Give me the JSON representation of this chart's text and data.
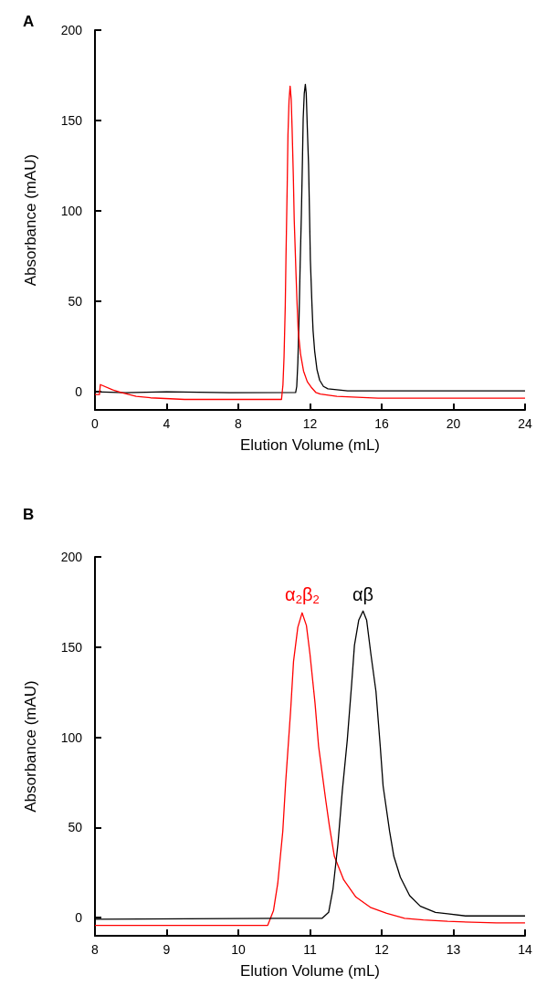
{
  "chart_data": [
    {
      "type": "line",
      "title": "A",
      "xlabel": "Elution Volume (mL)",
      "ylabel": "Absorbance (mAU)",
      "xlim": [
        0,
        24
      ],
      "xticks": [
        0,
        4,
        8,
        12,
        16,
        20,
        24
      ],
      "ylim": [
        -10,
        200
      ],
      "yticks": [
        0,
        50,
        100,
        150,
        200
      ],
      "marker": "none",
      "line_style": "solid",
      "grid": false,
      "series": [
        {
          "color": "#000000",
          "x": [
            0,
            1.7,
            4,
            7.5,
            11.2,
            11.26,
            11.32,
            11.39,
            11.45,
            11.52,
            11.58,
            11.62,
            11.68,
            11.74,
            11.79,
            11.85,
            11.92,
            11.98,
            12.02,
            12.11,
            12.17,
            12.26,
            12.39,
            12.54,
            12.75,
            13.0,
            14.1,
            24
          ],
          "values": [
            0,
            -0.5,
            0,
            -0.5,
            -0.3,
            3,
            15.7,
            41,
            70,
            98.5,
            129,
            151,
            165,
            170,
            165,
            146,
            125.5,
            95,
            73,
            48,
            34,
            22.5,
            12.3,
            6.4,
            3,
            1.7,
            0.5,
            0.5
          ]
        },
        {
          "color": "#ff0000",
          "x": [
            0,
            0.25,
            0.3,
            1,
            1.5,
            2.3,
            3.1,
            5,
            10.41,
            10.49,
            10.55,
            10.62,
            10.66,
            10.73,
            10.77,
            10.83,
            10.89,
            10.95,
            11.0,
            11.07,
            11.12,
            11.17,
            11.22,
            11.27,
            11.34,
            11.47,
            11.64,
            11.85,
            12.07,
            12.32,
            12.58,
            13.5,
            15.8,
            24
          ],
          "values": [
            -1.5,
            -1.5,
            4,
            1,
            -0.5,
            -2.5,
            -3.3,
            -4.2,
            -4.2,
            3.9,
            19,
            47.8,
            74.8,
            115,
            142,
            161,
            169,
            162,
            146,
            119,
            95,
            80,
            65,
            51,
            34,
            21,
            11.5,
            5.6,
            2.5,
            -0.3,
            -1.2,
            -2.5,
            -3.5,
            -3.5
          ]
        }
      ]
    },
    {
      "type": "line",
      "title": "B",
      "xlabel": "Elution Volume (mL)",
      "ylabel": "Absorbance (mAU)",
      "xlim": [
        8,
        14
      ],
      "xticks": [
        8,
        9,
        10,
        11,
        12,
        13,
        14
      ],
      "ylim": [
        -10,
        200
      ],
      "yticks": [
        0,
        50,
        100,
        150,
        200
      ],
      "marker": "none",
      "line_style": "solid",
      "grid": false,
      "series": [
        {
          "name": "α$_{2}$β$_{2}$",
          "color": "#ff0000",
          "x": [
            8,
            10.41,
            10.49,
            10.55,
            10.62,
            10.66,
            10.73,
            10.77,
            10.83,
            10.89,
            10.95,
            11.0,
            11.07,
            11.12,
            11.17,
            11.22,
            11.27,
            11.34,
            11.47,
            11.64,
            11.85,
            12.07,
            12.32,
            12.58,
            12.92,
            13.6,
            14
          ],
          "values": [
            -4.2,
            -4.2,
            3.9,
            19,
            47.8,
            74.8,
            115,
            142,
            161,
            169,
            162,
            146,
            119,
            95,
            80,
            65,
            51,
            34,
            21,
            11.5,
            5.6,
            2.5,
            -0.3,
            -1.2,
            -2,
            -2.9,
            -2.9
          ]
        },
        {
          "name": "αβ",
          "color": "#000000",
          "x": [
            8,
            10.6,
            11.17,
            11.26,
            11.32,
            11.39,
            11.45,
            11.52,
            11.58,
            11.62,
            11.68,
            11.74,
            11.79,
            11.85,
            11.92,
            11.98,
            12.02,
            12.11,
            12.17,
            12.26,
            12.39,
            12.54,
            12.75,
            12.92,
            13.17,
            14
          ],
          "values": [
            -0.8,
            -0.3,
            -0.3,
            3,
            15.7,
            41,
            70,
            98.5,
            129,
            151,
            165,
            170,
            165,
            146,
            125.5,
            95,
            73,
            48,
            34,
            22.5,
            12.3,
            6.4,
            3,
            2.2,
            1,
            1
          ]
        }
      ]
    }
  ]
}
